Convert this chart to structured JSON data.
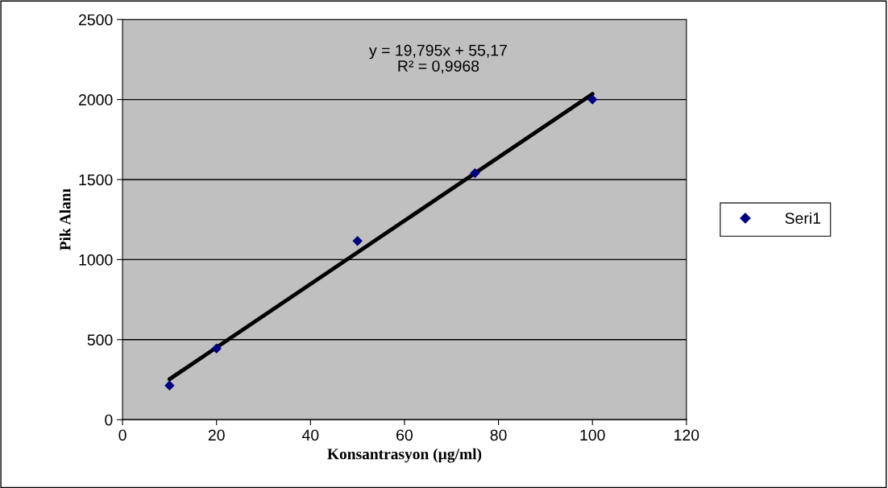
{
  "chart_data": {
    "type": "scatter",
    "xlabel": "Konsantrasyon (µg/ml)",
    "ylabel": "Pik Alanı",
    "x": [
      10,
      20,
      50,
      75,
      100
    ],
    "series": [
      {
        "name": "Seri1",
        "color": "#000080",
        "marker": "diamond",
        "values": [
          213,
          445,
          1116,
          1540,
          2000
        ]
      },
      {
        "type": "line",
        "color": "#000000",
        "marker": "none",
        "line_style": "solid",
        "x": [
          10,
          100
        ],
        "values": [
          253,
          2035
        ]
      }
    ],
    "annotations": [
      "y = 19,795x + 55,17\nR² = 0,9968"
    ],
    "xlim": [
      0,
      120
    ],
    "xticks": [
      0,
      20,
      40,
      60,
      80,
      100,
      120
    ],
    "ylim": [
      0,
      2500
    ],
    "yticks": [
      0,
      500,
      1000,
      1500,
      2000,
      2500
    ],
    "grid": "y",
    "legend": "right"
  }
}
